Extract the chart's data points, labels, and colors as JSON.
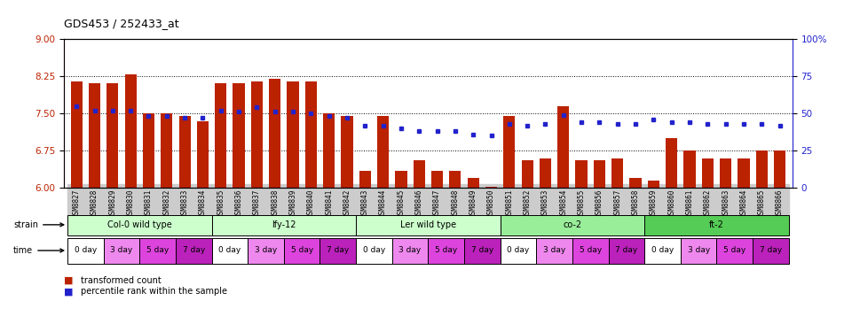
{
  "title": "GDS453 / 252433_at",
  "samples": [
    "GSM8827",
    "GSM8828",
    "GSM8829",
    "GSM8830",
    "GSM8831",
    "GSM8832",
    "GSM8833",
    "GSM8834",
    "GSM8835",
    "GSM8836",
    "GSM8837",
    "GSM8838",
    "GSM8839",
    "GSM8840",
    "GSM8841",
    "GSM8842",
    "GSM8843",
    "GSM8844",
    "GSM8845",
    "GSM8846",
    "GSM8847",
    "GSM8848",
    "GSM8849",
    "GSM8850",
    "GSM8851",
    "GSM8852",
    "GSM8853",
    "GSM8854",
    "GSM8855",
    "GSM8856",
    "GSM8857",
    "GSM8858",
    "GSM8859",
    "GSM8860",
    "GSM8861",
    "GSM8862",
    "GSM8863",
    "GSM8864",
    "GSM8865",
    "GSM8866"
  ],
  "bar_values": [
    8.15,
    8.1,
    8.1,
    8.28,
    7.5,
    7.5,
    7.45,
    7.35,
    8.1,
    8.1,
    8.15,
    8.2,
    8.15,
    8.15,
    7.5,
    7.45,
    6.35,
    7.45,
    6.35,
    6.55,
    6.35,
    6.35,
    6.2,
    6.02,
    7.45,
    6.55,
    6.6,
    7.65,
    6.55,
    6.55,
    6.6,
    6.2,
    6.15,
    7.0,
    6.75,
    6.6,
    6.6,
    6.6,
    6.75,
    6.75
  ],
  "percentile_values": [
    55,
    52,
    52,
    52,
    48,
    48,
    47,
    47,
    52,
    51,
    54,
    51,
    51,
    50,
    48,
    47,
    42,
    42,
    40,
    38,
    38,
    38,
    36,
    35,
    43,
    42,
    43,
    49,
    44,
    44,
    43,
    43,
    46,
    44,
    44,
    43,
    43,
    43,
    43,
    42
  ],
  "ylim_left": [
    6,
    9
  ],
  "ylim_right": [
    0,
    100
  ],
  "yticks_left": [
    6,
    6.75,
    7.5,
    8.25,
    9
  ],
  "yticks_right": [
    0,
    25,
    50,
    75,
    100
  ],
  "bar_color": "#BB2200",
  "dot_color": "#2222CC",
  "strain_groups": [
    {
      "label": "Col-0 wild type",
      "start": 0,
      "end": 8,
      "color": "#ccffcc"
    },
    {
      "label": "lfy-12",
      "start": 8,
      "end": 16,
      "color": "#ccffcc"
    },
    {
      "label": "Ler wild type",
      "start": 16,
      "end": 24,
      "color": "#ccffcc"
    },
    {
      "label": "co-2",
      "start": 24,
      "end": 32,
      "color": "#99ee99"
    },
    {
      "label": "ft-2",
      "start": 32,
      "end": 40,
      "color": "#55cc55"
    }
  ],
  "time_labels": [
    "0 day",
    "3 day",
    "5 day",
    "7 day"
  ],
  "time_colors": [
    "#ffffff",
    "#ee88ee",
    "#dd44dd",
    "#bb22bb"
  ]
}
